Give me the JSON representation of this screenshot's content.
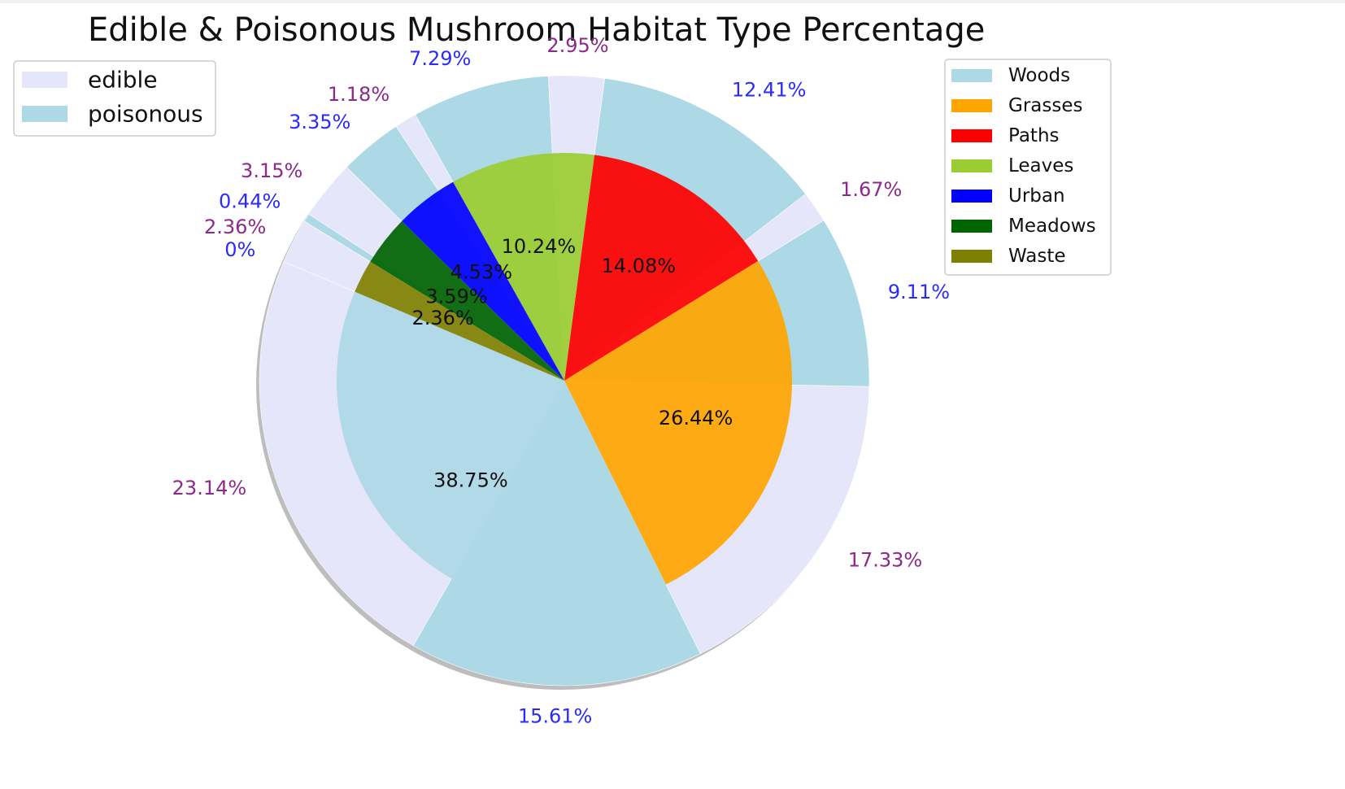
{
  "chart_data": {
    "type": "pie",
    "title": "Edible & Poisonous Mushroom Habitat Type Percentage",
    "inner": {
      "categories": [
        "Woods",
        "Grasses",
        "Paths",
        "Leaves",
        "Urban",
        "Meadows",
        "Waste"
      ],
      "values": [
        38.75,
        26.44,
        14.08,
        10.24,
        4.53,
        3.59,
        2.36
      ],
      "labels": [
        "38.75%",
        "26.44%",
        "14.08%",
        "10.24%",
        "4.53%",
        "3.59%",
        "2.36%"
      ],
      "colors": [
        "#add8e6",
        "#ffa500",
        "#ff0000",
        "#9acd32",
        "#0000ff",
        "#006400",
        "#808000"
      ]
    },
    "outer": {
      "series": [
        "edible",
        "poisonous"
      ],
      "series_colors": [
        "#e6e6fa",
        "#add8e6"
      ],
      "label_colors": [
        "#8b2a8b",
        "#2a2aff"
      ],
      "segments": [
        {
          "habitat": "Woods",
          "class": "edible",
          "value": 23.14,
          "label": "23.14%"
        },
        {
          "habitat": "Woods",
          "class": "poisonous",
          "value": 15.61,
          "label": "15.61%"
        },
        {
          "habitat": "Grasses",
          "class": "edible",
          "value": 17.33,
          "label": "17.33%"
        },
        {
          "habitat": "Grasses",
          "class": "poisonous",
          "value": 9.11,
          "label": "9.11%"
        },
        {
          "habitat": "Paths",
          "class": "edible",
          "value": 1.67,
          "label": "1.67%"
        },
        {
          "habitat": "Paths",
          "class": "poisonous",
          "value": 12.41,
          "label": "12.41%"
        },
        {
          "habitat": "Leaves",
          "class": "edible",
          "value": 2.95,
          "label": "2.95%"
        },
        {
          "habitat": "Leaves",
          "class": "poisonous",
          "value": 7.29,
          "label": "7.29%"
        },
        {
          "habitat": "Urban",
          "class": "edible",
          "value": 1.18,
          "label": "1.18%"
        },
        {
          "habitat": "Urban",
          "class": "poisonous",
          "value": 3.35,
          "label": "3.35%"
        },
        {
          "habitat": "Meadows",
          "class": "edible",
          "value": 3.15,
          "label": "3.15%"
        },
        {
          "habitat": "Meadows",
          "class": "poisonous",
          "value": 0.44,
          "label": "0.44%"
        },
        {
          "habitat": "Waste",
          "class": "edible",
          "value": 2.36,
          "label": "2.36%"
        },
        {
          "habitat": "Waste",
          "class": "poisonous",
          "value": 0,
          "label": "0%"
        }
      ]
    },
    "legend_class": {
      "position": "top-left",
      "entries": [
        "edible",
        "poisonous"
      ]
    },
    "legend_habitat": {
      "position": "top-right",
      "entries": [
        "Woods",
        "Grasses",
        "Paths",
        "Leaves",
        "Urban",
        "Meadows",
        "Waste"
      ]
    },
    "shadow": true
  }
}
